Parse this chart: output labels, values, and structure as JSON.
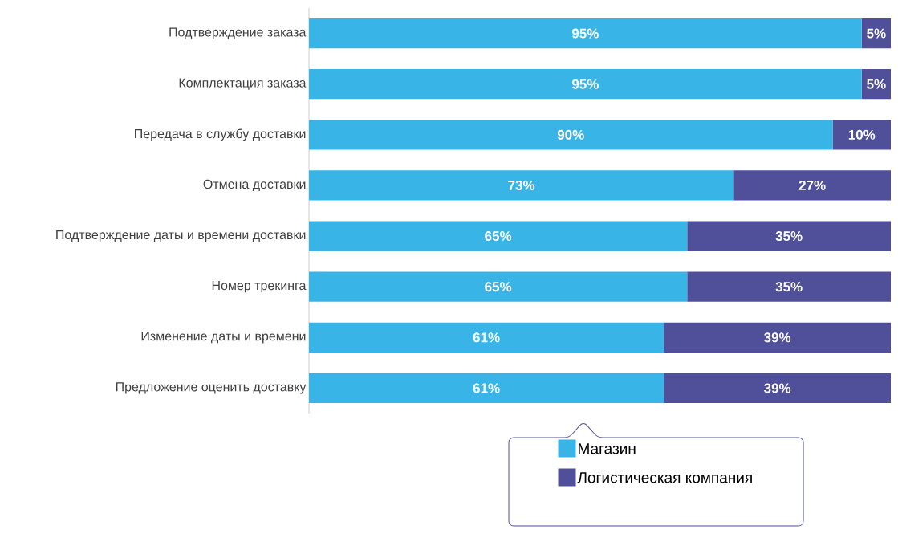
{
  "chart_data": {
    "type": "bar",
    "orientation": "horizontal",
    "stacked": true,
    "categories": [
      "Подтверждение заказа",
      "Комплектация заказа",
      "Передача в службу доставки",
      "Отмена доставки",
      "Подтверждение даты и времени доставки",
      "Номер трекинга",
      "Изменение даты и времени",
      "Предложение оценить доставку"
    ],
    "series": [
      {
        "name": "Магазин",
        "color": "#38b4e7",
        "values": [
          95,
          95,
          90,
          73,
          65,
          65,
          61,
          61
        ],
        "value_labels": [
          "95%",
          "95%",
          "90%",
          "73%",
          "65%",
          "65%",
          "61%",
          "61%"
        ]
      },
      {
        "name": "Логистическая компания",
        "color": "#4f4f9a",
        "values": [
          5,
          5,
          10,
          27,
          35,
          35,
          39,
          39
        ],
        "value_labels": [
          "5%",
          "5%",
          "10%",
          "27%",
          "35%",
          "35%",
          "39%",
          "39%"
        ]
      }
    ],
    "xlim": [
      0,
      100
    ],
    "tick_labels": "y",
    "legend": "bottom"
  }
}
